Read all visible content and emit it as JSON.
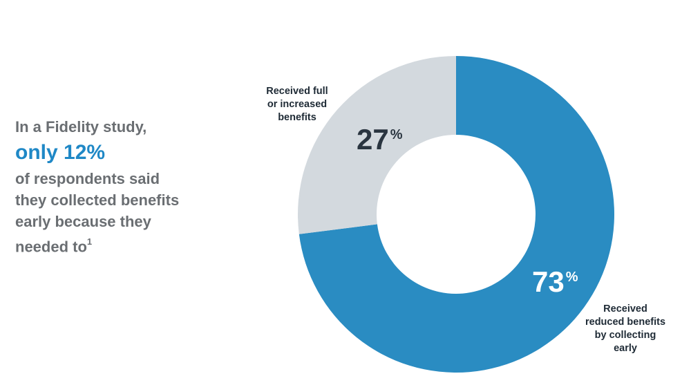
{
  "intro": {
    "line1": "In a Fidelity study,",
    "highlight": "only 12%",
    "line2": "of respondents said",
    "line3": "they collected benefits",
    "line4": "early because they",
    "line5": "needed to",
    "footnote": "1"
  },
  "colors": {
    "reduced": "#2a8cc2",
    "full": "#d3d9de",
    "highlight": "#1f88c6",
    "body_text": "#6a6e72"
  },
  "chart_data": {
    "type": "pie",
    "style": "donut",
    "slices": [
      {
        "name": "Received reduced benefits by collecting early",
        "value": 73,
        "pct_label": "73",
        "label_lines": [
          "Received",
          "reduced benefits",
          "by collecting",
          "early"
        ]
      },
      {
        "name": "Received full or increased benefits",
        "value": 27,
        "pct_label": "27",
        "label_lines": [
          "Received full",
          "or increased",
          "benefits"
        ]
      }
    ],
    "percent_sign": "%"
  }
}
